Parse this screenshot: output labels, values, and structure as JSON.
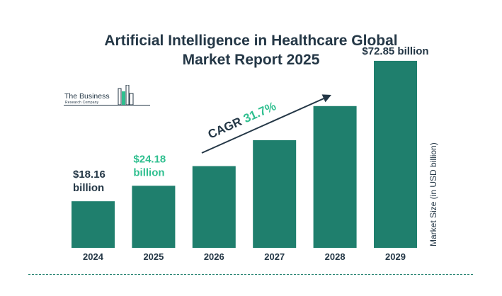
{
  "header": {
    "title_line1": "Artificial Intelligence in Healthcare Global",
    "title_line2": "Market Report 2025"
  },
  "logo": {
    "line1": "The Business",
    "line2": "Research Company",
    "icon": "building-bars-icon"
  },
  "colors": {
    "bar": "#1f7f6d",
    "highlight": "#2fbf8f",
    "text": "#243746"
  },
  "chart_data": {
    "type": "bar",
    "title": "Artificial Intelligence in Healthcare Global Market Report 2025",
    "categories": [
      "2024",
      "2025",
      "2026",
      "2027",
      "2028",
      "2029"
    ],
    "values": [
      18.16,
      24.18,
      31.84,
      41.94,
      55.23,
      72.85
    ],
    "ylabel": "Market Size (in USD billion)",
    "ylim": [
      0,
      80
    ],
    "grid": false,
    "data_labels": [
      {
        "index": 0,
        "line1": "$18.16",
        "line2": "billion",
        "highlight": false
      },
      {
        "index": 1,
        "line1": "$24.18",
        "line2": "billion",
        "highlight": true
      },
      {
        "index": 5,
        "line1": "$72.85 billion",
        "line2": "",
        "highlight": false
      }
    ],
    "annotation": {
      "prefix": "CAGR ",
      "value": "31.7%"
    }
  }
}
